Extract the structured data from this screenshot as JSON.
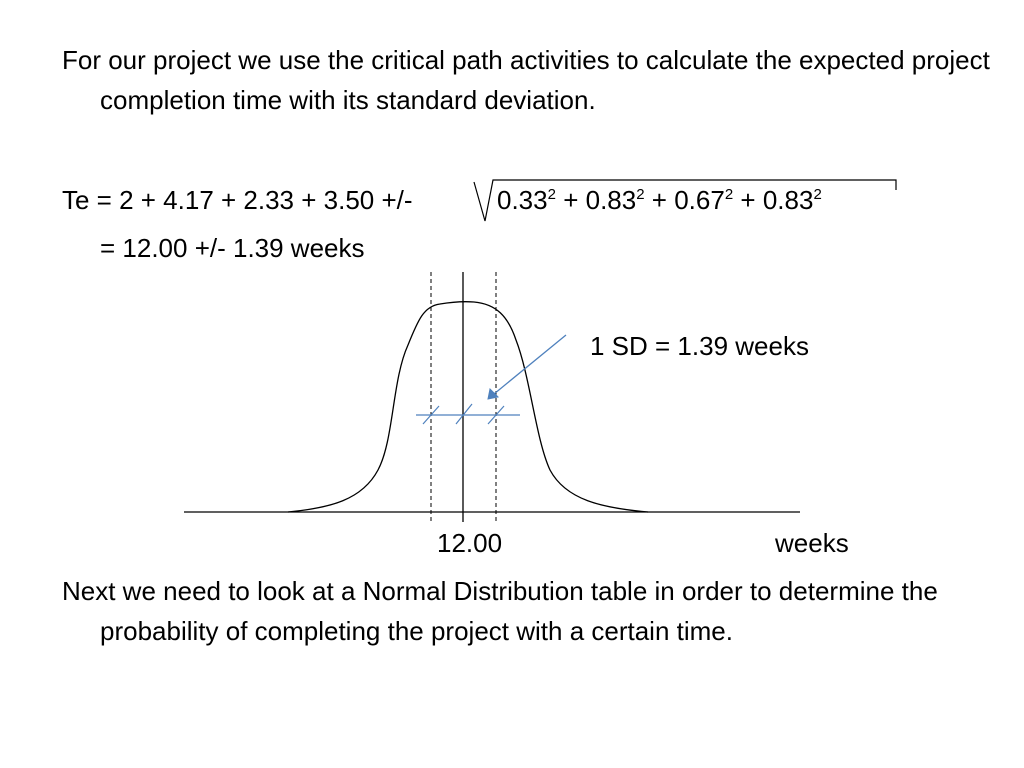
{
  "slide": {
    "intro_text": "For our project we use the critical path activities to calculate the expected project completion time with its standard deviation.",
    "formula": {
      "lhs": "Te = 2 + 4.17 + 2.33 + 3.50 +/-",
      "terms": [
        {
          "base": "0.33",
          "exp": "2"
        },
        {
          "base": "0.83",
          "exp": "2"
        },
        {
          "base": "0.67",
          "exp": "2"
        },
        {
          "base": "0.83",
          "exp": "2"
        }
      ],
      "plus": "+",
      "result": "= 12.00 +/- 1.39 weeks"
    },
    "figure": {
      "sd_label": "1 SD = 1.39 weeks",
      "center_label": "12.00",
      "axis_label": "weeks",
      "colors": {
        "curve": "#000000",
        "annotation": "#4f81bd"
      }
    },
    "closing_text": "Next we need to look at a Normal Distribution table in order to determine the probability of completing the project with a certain time."
  }
}
